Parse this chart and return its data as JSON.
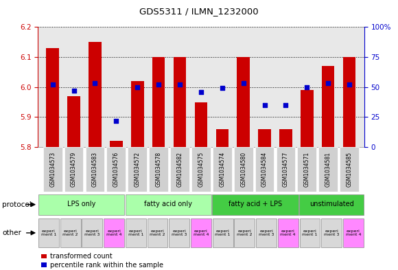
{
  "title": "GDS5311 / ILMN_1232000",
  "samples": [
    "GSM1034573",
    "GSM1034579",
    "GSM1034583",
    "GSM1034576",
    "GSM1034572",
    "GSM1034578",
    "GSM1034582",
    "GSM1034575",
    "GSM1034574",
    "GSM1034580",
    "GSM1034584",
    "GSM1034577",
    "GSM1034571",
    "GSM1034581",
    "GSM1034585"
  ],
  "red_values": [
    6.13,
    5.97,
    6.15,
    5.82,
    6.02,
    6.1,
    6.1,
    5.95,
    5.86,
    6.1,
    5.86,
    5.86,
    5.99,
    6.07,
    6.1
  ],
  "blue_values": [
    52,
    47,
    53,
    22,
    50,
    52,
    52,
    46,
    49,
    53,
    35,
    35,
    50,
    53,
    52
  ],
  "ylim_left": [
    5.8,
    6.2
  ],
  "ylim_right": [
    0,
    100
  ],
  "yticks_left": [
    5.8,
    5.9,
    6.0,
    6.1,
    6.2
  ],
  "yticks_right": [
    0,
    25,
    50,
    75,
    100
  ],
  "ytick_labels_right": [
    "0",
    "25",
    "50",
    "75",
    "100%"
  ],
  "groups": [
    {
      "label": "LPS only",
      "start": 0,
      "end": 4,
      "color": "#aaffaa"
    },
    {
      "label": "fatty acid only",
      "start": 4,
      "end": 8,
      "color": "#aaffaa"
    },
    {
      "label": "fatty acid + LPS",
      "start": 8,
      "end": 12,
      "color": "#44cc44"
    },
    {
      "label": "unstimulated",
      "start": 12,
      "end": 15,
      "color": "#44cc44"
    }
  ],
  "cell_colors": [
    "#d8d8d8",
    "#d8d8d8",
    "#d8d8d8",
    "#ff88ff",
    "#d8d8d8",
    "#d8d8d8",
    "#d8d8d8",
    "#ff88ff",
    "#d8d8d8",
    "#d8d8d8",
    "#d8d8d8",
    "#ff88ff",
    "#d8d8d8",
    "#d8d8d8",
    "#ff88ff"
  ],
  "cell_labels": [
    "experi\nment 1",
    "experi\nment 2",
    "experi\nment 3",
    "experi\nment 4",
    "experi\nment 1",
    "experi\nment 2",
    "experi\nment 3",
    "experi\nment 4",
    "experi\nment 1",
    "experi\nment 2",
    "experi\nment 3",
    "experi\nment 4",
    "experi\nment 1",
    "experi\nment 3",
    "experi\nment 4"
  ],
  "bar_color": "#cc0000",
  "dot_color": "#0000cc",
  "bar_width": 0.6,
  "plot_bg": "#e8e8e8",
  "left_axis_color": "#cc0000",
  "right_axis_color": "#0000cc",
  "legend_labels": [
    "transformed count",
    "percentile rank within the sample"
  ]
}
